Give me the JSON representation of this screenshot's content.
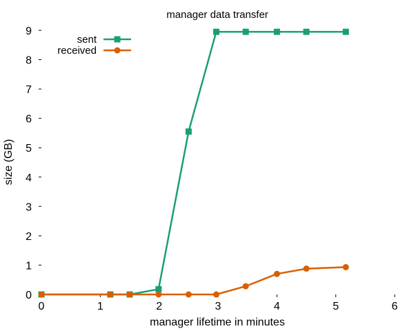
{
  "chart_data": {
    "type": "line",
    "title": "manager data transfer",
    "xlabel": "manager lifetime in minutes",
    "ylabel": "size (GB)",
    "xlim": [
      0,
      6
    ],
    "ylim": [
      0,
      9
    ],
    "xticks": [
      0,
      1,
      2,
      3,
      4,
      5,
      6
    ],
    "yticks": [
      0,
      1,
      2,
      3,
      4,
      5,
      6,
      7,
      8,
      9
    ],
    "grid": false,
    "legend_position": "top-left",
    "series": [
      {
        "name": "sent",
        "color": "#1a9e77",
        "marker": "square",
        "x": [
          0,
          1.17,
          1.5,
          1.99,
          2.5,
          2.97,
          3.47,
          4.0,
          4.5,
          5.17
        ],
        "y": [
          0,
          0,
          0,
          0.18,
          5.55,
          8.95,
          8.95,
          8.95,
          8.95,
          8.95
        ]
      },
      {
        "name": "received",
        "color": "#d95f02",
        "marker": "circle",
        "x": [
          0,
          1.17,
          1.5,
          1.99,
          2.5,
          2.97,
          3.47,
          4.0,
          4.5,
          5.17
        ],
        "y": [
          0,
          0,
          0,
          0,
          0,
          0,
          0.28,
          0.7,
          0.88,
          0.93
        ]
      }
    ]
  }
}
